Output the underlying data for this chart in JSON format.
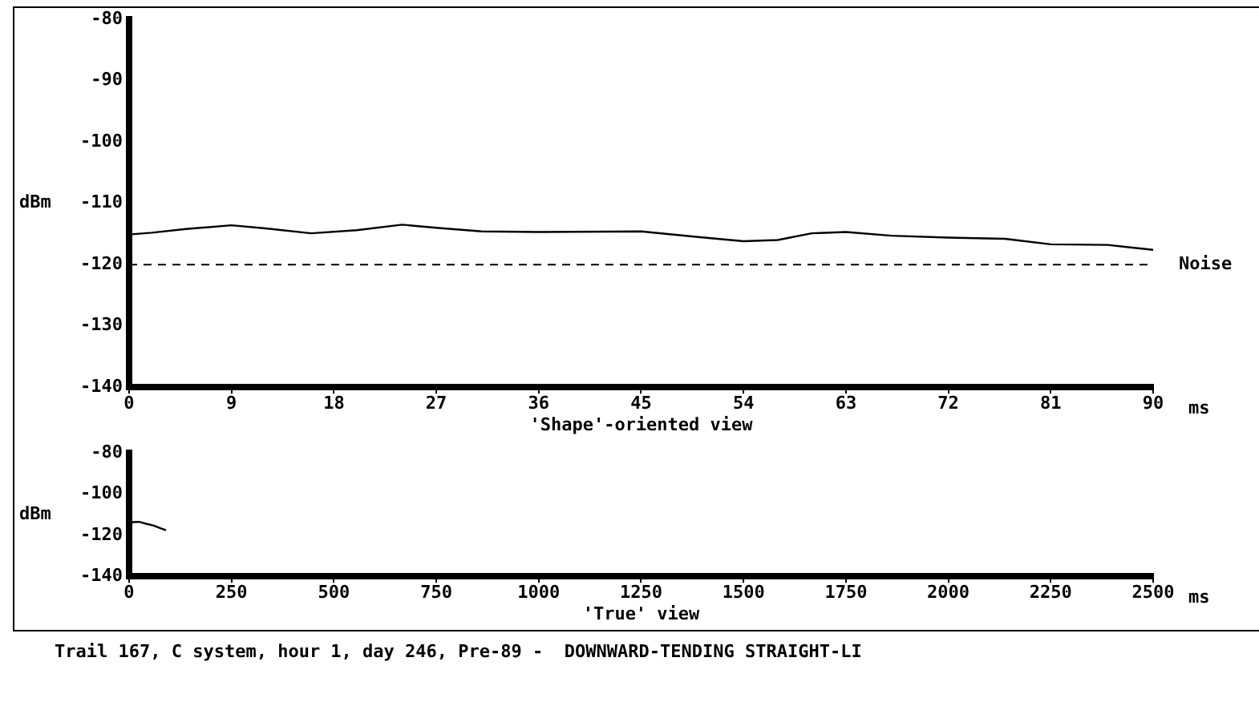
{
  "chart_data": [
    {
      "type": "line",
      "xlabel": "'Shape'-oriented view",
      "ylabel": "dBm",
      "x": [
        0,
        2,
        5,
        9,
        12,
        16,
        20,
        24,
        27,
        31,
        36,
        45,
        50,
        54,
        57,
        60,
        63,
        67,
        72,
        77,
        81,
        86,
        88,
        90
      ],
      "series": [
        {
          "color": "#000000",
          "values": [
            -115.1,
            -114.8,
            -114.2,
            -113.6,
            -114.1,
            -114.9,
            -114.4,
            -113.5,
            -114.0,
            -114.6,
            -114.7,
            -114.6,
            -115.5,
            -116.2,
            -116.0,
            -114.9,
            -114.7,
            -115.3,
            -115.6,
            -115.8,
            -116.7,
            -116.8,
            -117.2,
            -117.6
          ]
        }
      ],
      "xlim": [
        0,
        90
      ],
      "xticks": [
        0,
        9,
        18,
        27,
        36,
        45,
        54,
        63,
        72,
        81,
        90
      ],
      "ylim": [
        -140,
        -80
      ],
      "yticks": [
        -140,
        -130,
        -120,
        -110,
        -100,
        -90,
        -80
      ],
      "ref_lines": [
        {
          "axis": "y",
          "value": -120,
          "label": "Noise",
          "line_style": "dashed",
          "color": "#000000"
        }
      ],
      "annotations": [
        "ms"
      ],
      "grid": false,
      "legend": false,
      "marker": "none",
      "line_style": "solid"
    },
    {
      "type": "line",
      "xlabel": "'True' view",
      "ylabel": "dBm",
      "x": [
        0,
        9,
        24,
        45,
        60,
        75,
        90
      ],
      "series": [
        {
          "color": "#000000",
          "values": [
            -115.1,
            -113.6,
            -113.5,
            -114.6,
            -115.3,
            -116.5,
            -117.6
          ]
        }
      ],
      "xlim": [
        0,
        2500
      ],
      "xticks": [
        0,
        250,
        500,
        750,
        1000,
        1250,
        1500,
        1750,
        2000,
        2250,
        2500
      ],
      "ylim": [
        -140,
        -80
      ],
      "yticks": [
        -140,
        -120,
        -100,
        -80
      ],
      "annotations": [
        "ms",
        "Trail 167, C system, hour 1, day 246, Pre-89 -  DOWNWARD-TENDING STRAIGHT-LI"
      ],
      "grid": false,
      "legend": false,
      "marker": "none",
      "line_style": "solid"
    }
  ]
}
